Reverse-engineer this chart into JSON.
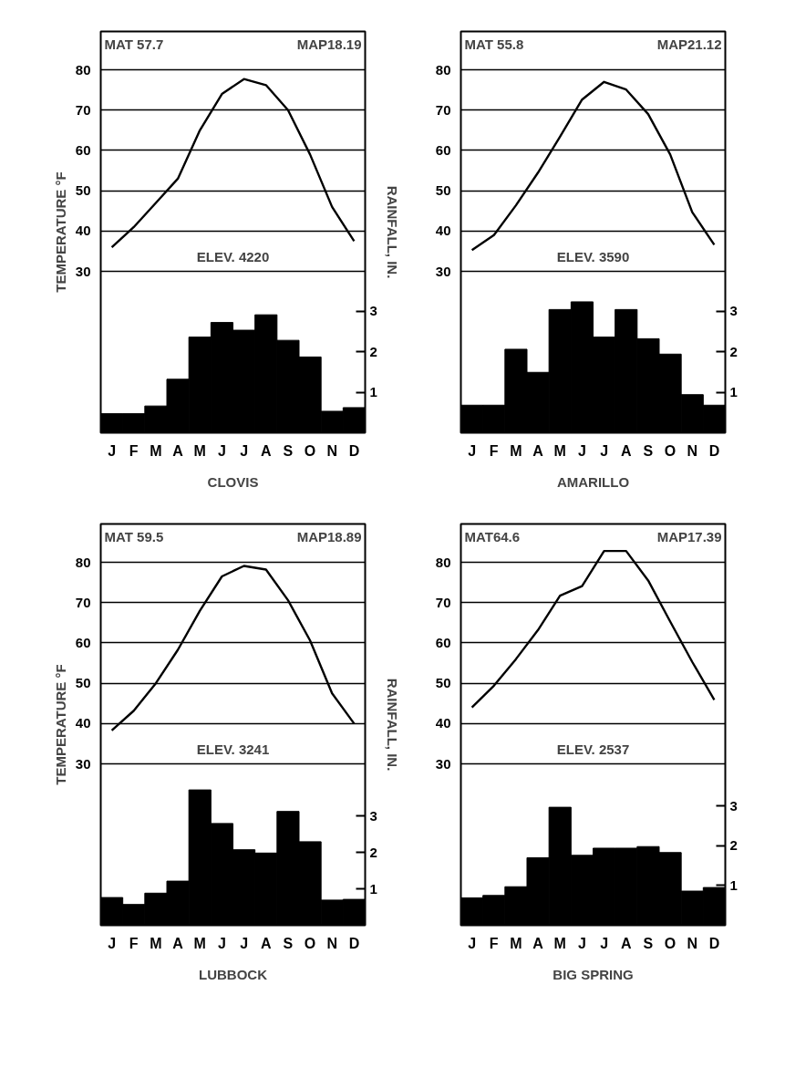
{
  "chart_data": [
    {
      "type": "line",
      "categories": [
        "J",
        "F",
        "M",
        "A",
        "M",
        "J",
        "J",
        "A",
        "S",
        "O",
        "N",
        "D"
      ],
      "xlabel": "CLOVIS",
      "ylabel": "TEMPERATURE °F",
      "y2label": "RAINFALL, IN.",
      "ylim": [
        -10,
        89.5
      ],
      "yticks": [
        30,
        40,
        50,
        60,
        70,
        80
      ],
      "y2lim": [
        0,
        9.9
      ],
      "y2ticks": [
        1,
        2,
        3
      ],
      "grid": "y",
      "annotations": [
        "MAT 57.7",
        "MAP18.19",
        "ELEV. 4220"
      ],
      "series": [
        {
          "type": "bar",
          "color": "#000000",
          "axis": "y2",
          "values": [
            0.47,
            0.47,
            0.66,
            1.32,
            2.36,
            2.72,
            2.53,
            2.91,
            2.28,
            1.87,
            0.53,
            0.62
          ]
        },
        {
          "color": "#000000",
          "values": [
            36,
            41,
            47,
            53,
            65,
            74,
            77.7,
            76.2,
            70,
            59,
            46,
            37.5
          ]
        }
      ]
    },
    {
      "type": "line",
      "categories": [
        "J",
        "F",
        "M",
        "A",
        "M",
        "J",
        "J",
        "A",
        "S",
        "O",
        "N",
        "D"
      ],
      "xlabel": "AMARILLO",
      "ylim": [
        -10,
        89.5
      ],
      "yticks": [
        30,
        40,
        50,
        60,
        70,
        80
      ],
      "y2lim": [
        0,
        9.9
      ],
      "y2ticks": [
        1,
        2,
        3
      ],
      "grid": "y",
      "annotations": [
        "MAT 55.8",
        "MAP21.12",
        "ELEV. 3590"
      ],
      "series": [
        {
          "type": "bar",
          "color": "#000000",
          "axis": "y2",
          "values": [
            0.68,
            0.68,
            2.06,
            1.49,
            3.04,
            3.23,
            2.36,
            3.04,
            2.32,
            1.94,
            0.94,
            0.68
          ]
        },
        {
          "color": "#000000",
          "values": [
            35.3,
            39,
            46.4,
            54.5,
            63.4,
            72.6,
            77,
            75.1,
            69,
            59,
            44.7,
            36.6
          ]
        }
      ]
    },
    {
      "type": "line",
      "categories": [
        "J",
        "F",
        "M",
        "A",
        "M",
        "J",
        "J",
        "A",
        "S",
        "O",
        "N",
        "D"
      ],
      "xlabel": "LUBBOCK",
      "ylabel": "TEMPERATURE °F",
      "y2label": "RAINFALL, IN.",
      "ylim": [
        -10,
        89.5
      ],
      "yticks": [
        30,
        40,
        50,
        60,
        70,
        80
      ],
      "y2lim": [
        0,
        11
      ],
      "y2ticks": [
        1,
        2,
        3
      ],
      "grid": "y",
      "annotations": [
        "MAT 59.5",
        "MAP18.89",
        "ELEV. 3241"
      ],
      "series": [
        {
          "type": "bar",
          "color": "#000000",
          "axis": "y2",
          "values": [
            0.76,
            0.57,
            0.88,
            1.21,
            3.71,
            2.79,
            2.07,
            1.98,
            3.12,
            2.29,
            0.69,
            0.71
          ]
        },
        {
          "color": "#000000",
          "values": [
            38.3,
            43.2,
            50,
            58.3,
            68,
            76.5,
            79.1,
            78.2,
            70.6,
            60.6,
            47.5,
            40
          ]
        }
      ]
    },
    {
      "type": "line",
      "categories": [
        "J",
        "F",
        "M",
        "A",
        "M",
        "J",
        "J",
        "A",
        "S",
        "O",
        "N",
        "D"
      ],
      "xlabel": "BIG SPRING",
      "ylim": [
        -10,
        89.5
      ],
      "yticks": [
        30,
        40,
        50,
        60,
        70,
        80
      ],
      "y2lim": [
        0,
        10.1
      ],
      "y2ticks": [
        1,
        2,
        3
      ],
      "grid": "y",
      "annotations": [
        "MAT64.6",
        "MAP17.39",
        "ELEV. 2537"
      ],
      "series": [
        {
          "type": "bar",
          "color": "#000000",
          "axis": "y2",
          "values": [
            0.69,
            0.75,
            0.97,
            1.7,
            2.97,
            1.76,
            1.94,
            1.94,
            1.98,
            1.83,
            0.86,
            0.95
          ]
        },
        {
          "color": "#000000",
          "values": [
            44,
            49.4,
            56,
            63.2,
            71.7,
            74.1,
            82.8,
            82.8,
            75.5,
            65.3,
            55.3,
            45.9
          ]
        }
      ]
    }
  ]
}
